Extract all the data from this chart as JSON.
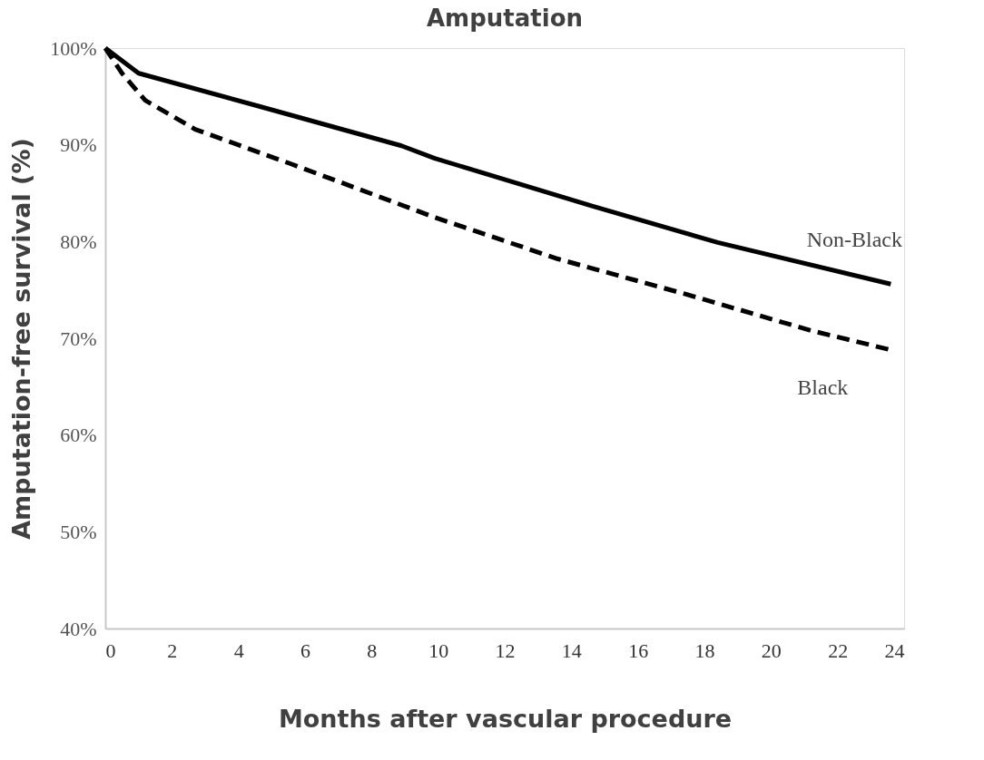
{
  "chart_data": {
    "type": "line",
    "title": "Amputation",
    "xlabel": "Months after vascular procedure",
    "ylabel": "Amputation-free survival (%)",
    "series": [
      {
        "name": "Non-Black",
        "color": "#000000",
        "line_style": "solid",
        "x": [
          0,
          1.0,
          4.6,
          8.9,
          9.9,
          14.6,
          18.4,
          23.6
        ],
        "values": [
          100,
          97.4,
          94.0,
          89.9,
          88.6,
          83.7,
          79.9,
          75.6
        ]
      },
      {
        "name": "Black",
        "color": "#000000",
        "line_style": "dashed",
        "x": [
          0,
          0.5,
          1.2,
          2.7,
          5.6,
          9.9,
          13.6,
          17.4,
          21.2,
          23.6
        ],
        "values": [
          100,
          97.4,
          94.6,
          91.6,
          88.0,
          82.5,
          78.2,
          74.6,
          70.8,
          68.8
        ]
      }
    ],
    "xlim": [
      0,
      24
    ],
    "xticks": [
      0,
      2,
      4,
      6,
      8,
      10,
      12,
      14,
      16,
      18,
      20,
      22,
      24
    ],
    "ylim": [
      40,
      100
    ],
    "yticks": [
      {
        "value": 40,
        "label": "40%"
      },
      {
        "value": 50,
        "label": "50%"
      },
      {
        "value": 60,
        "label": "60%"
      },
      {
        "value": 70,
        "label": "70%"
      },
      {
        "value": 80,
        "label": "80%"
      },
      {
        "value": 90,
        "label": "90%"
      },
      {
        "value": 100,
        "label": "100%"
      }
    ],
    "grid": false,
    "marker": "none"
  }
}
